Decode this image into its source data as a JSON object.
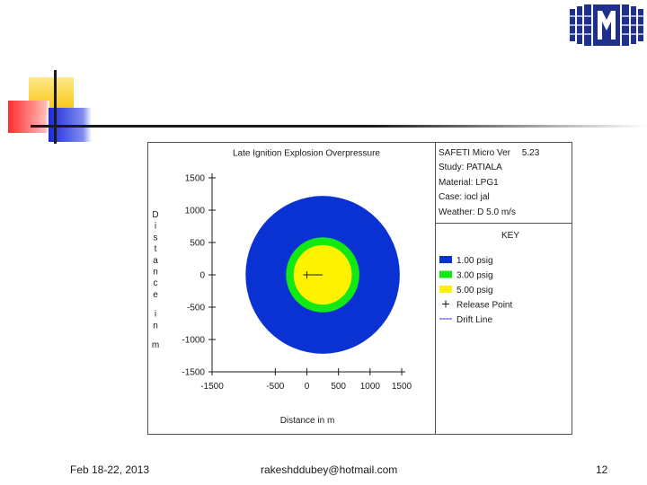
{
  "footer": {
    "date": "Feb 18-22, 2013",
    "email": "rakeshddubey@hotmail.com",
    "page_number": "12"
  },
  "logo": {
    "icon": "institution-logo-icon"
  },
  "info_panel": {
    "software_label": "SAFETI Micro Ver",
    "software_version": "5.23",
    "study": "Study: PATIALA",
    "material": "Material: LPG1",
    "case": "Case: iocl jal",
    "weather": "Weather: D 5.0 m/s",
    "key_title": "KEY"
  },
  "colors": {
    "contour_1psig": "#0a32d2",
    "contour_3psig": "#12e812",
    "contour_5psig": "#fff200",
    "drift_line": "#3a3acc"
  },
  "chart_data": {
    "type": "contour",
    "title": "Late Ignition Explosion Overpressure",
    "xlabel": "Distance in m",
    "ylabel": "Distance in m",
    "xlim": [
      -1500,
      1500
    ],
    "ylim": [
      -1500,
      1500
    ],
    "x_ticks": [
      -1500,
      -500,
      0,
      500,
      1000,
      1500
    ],
    "y_ticks": [
      1500,
      1000,
      500,
      0,
      -500,
      -1000,
      -1500
    ],
    "grid": false,
    "legend_position": "right",
    "contours": [
      {
        "name": "1.00 psig",
        "center_x": 250,
        "center_y": 0,
        "radius": 1220,
        "color": "#0a32d2"
      },
      {
        "name": "3.00 psig",
        "center_x": 250,
        "center_y": 0,
        "radius": 580,
        "color": "#12e812"
      },
      {
        "name": "5.00 psig",
        "center_x": 250,
        "center_y": 0,
        "radius": 460,
        "color": "#fff200"
      }
    ],
    "release_point": {
      "name": "Release Point",
      "x": 0,
      "y": 0
    },
    "drift_line": {
      "name": "Drift Line",
      "x": [
        0,
        250
      ],
      "y": [
        0,
        0
      ]
    }
  }
}
